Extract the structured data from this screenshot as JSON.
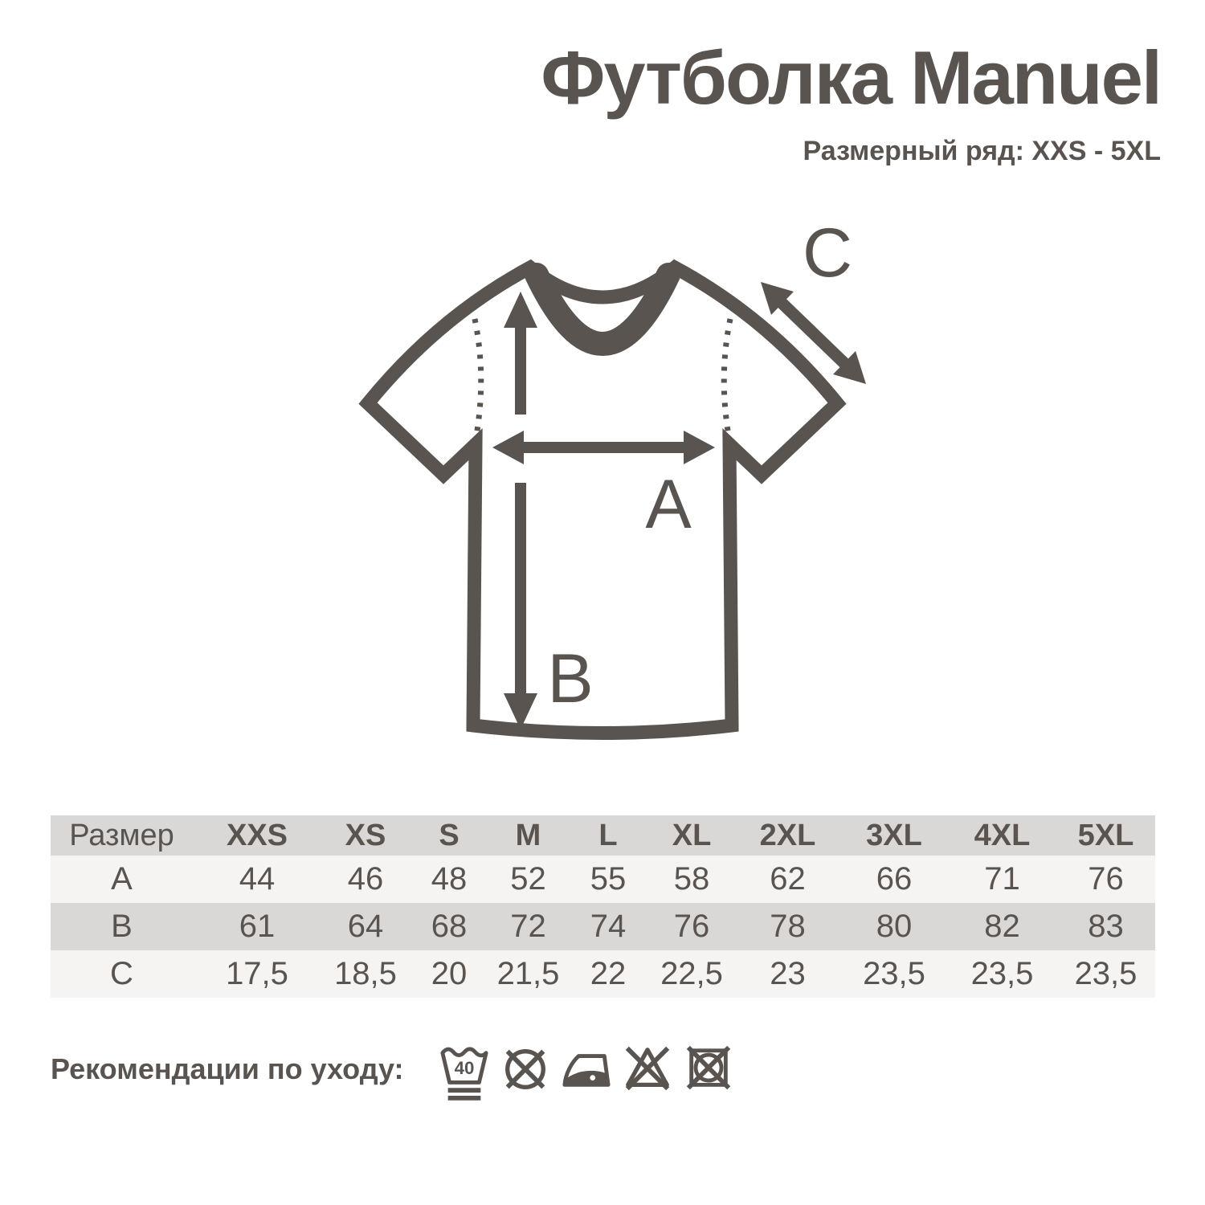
{
  "page": {
    "title": "Футболка Manuel",
    "subtitle": "Размерный ряд: XXS - 5XL"
  },
  "diagram": {
    "label_a": "A",
    "label_b": "B",
    "label_c": "C"
  },
  "size_table": {
    "header_label": "Размер",
    "sizes": [
      "XXS",
      "XS",
      "S",
      "M",
      "L",
      "XL",
      "2XL",
      "3XL",
      "4XL",
      "5XL"
    ],
    "rows": [
      {
        "label": "A",
        "values": [
          "44",
          "46",
          "48",
          "52",
          "55",
          "58",
          "62",
          "66",
          "71",
          "76"
        ]
      },
      {
        "label": "B",
        "values": [
          "61",
          "64",
          "68",
          "72",
          "74",
          "76",
          "78",
          "80",
          "82",
          "83"
        ]
      },
      {
        "label": "C",
        "values": [
          "17,5",
          "18,5",
          "20",
          "21,5",
          "22",
          "22,5",
          "23",
          "23,5",
          "23,5",
          "23,5"
        ]
      }
    ]
  },
  "care": {
    "label": "Рекомендации по уходу:",
    "wash_temp": "40",
    "icons": [
      "wash-40-gentle-icon",
      "do-not-dry-clean-icon",
      "iron-low-heat-icon",
      "do-not-bleach-icon",
      "do-not-tumble-dry-icon"
    ]
  },
  "colors": {
    "ink": "#595450",
    "row_gray": "#d9d8d7",
    "row_light": "#f5f4f3"
  }
}
